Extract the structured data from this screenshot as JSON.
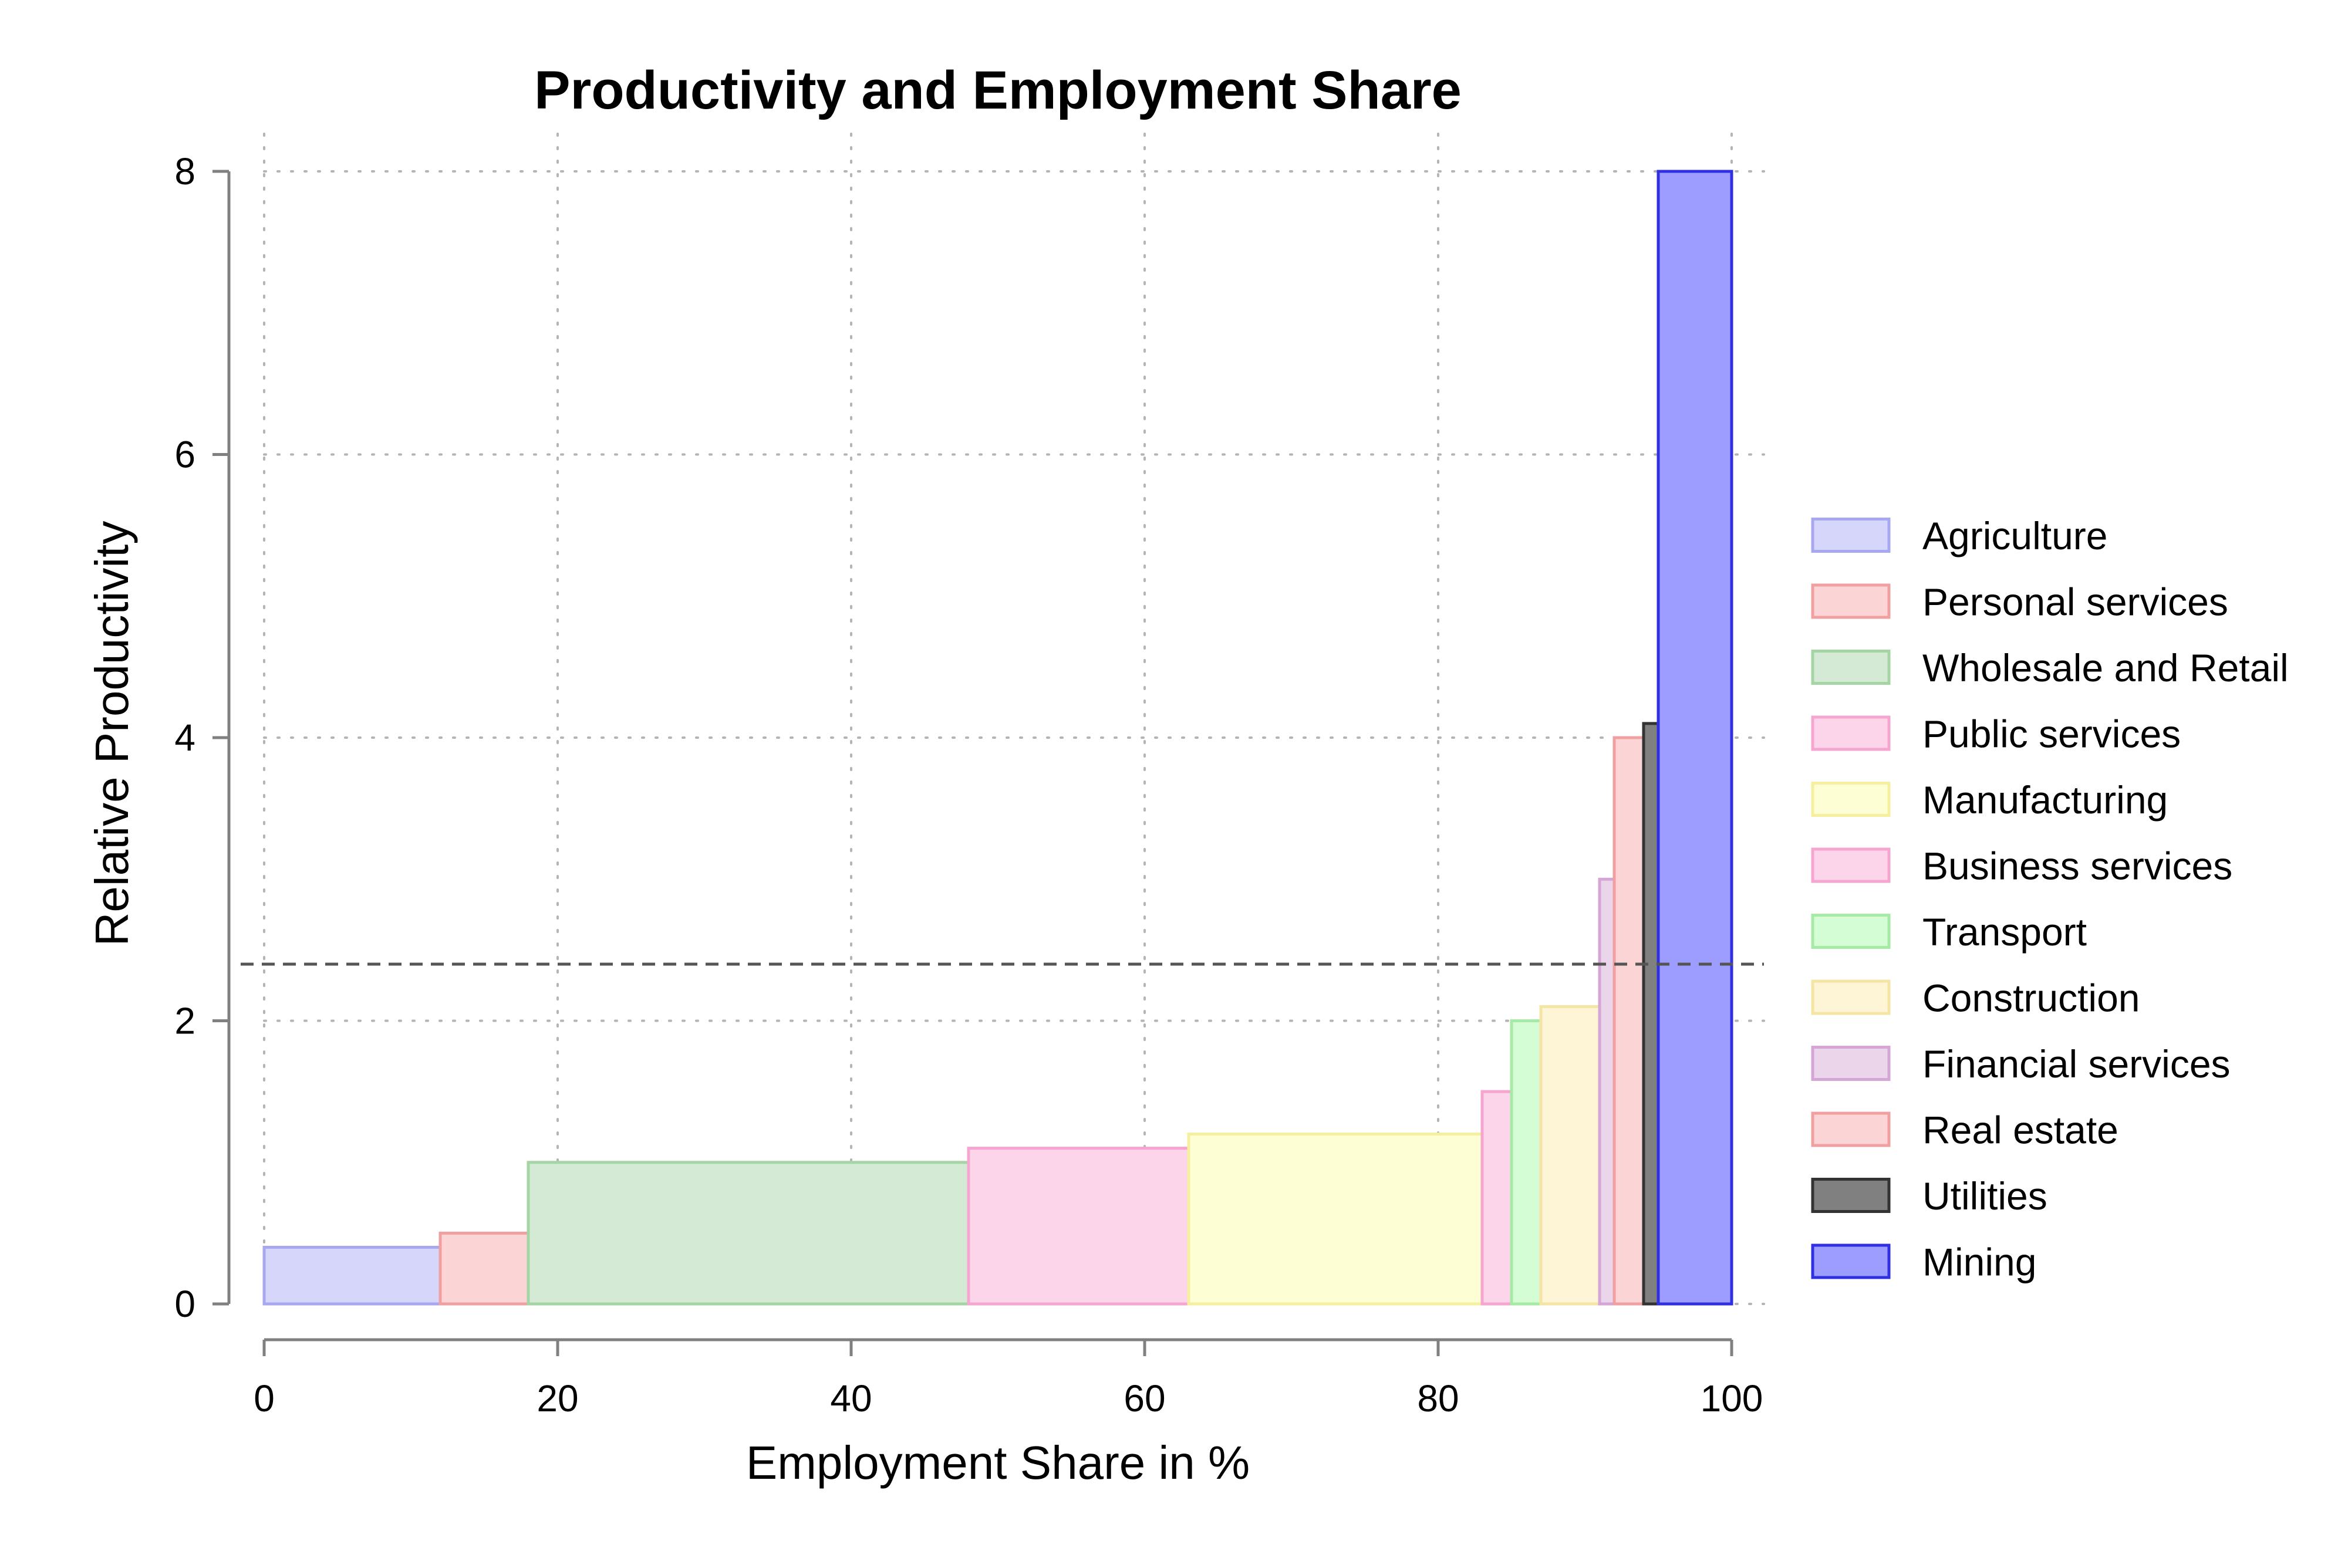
{
  "chart_data": {
    "type": "bar",
    "subtype": "variable-width (mekko) bar chart",
    "title": "Productivity and Employment Share",
    "xlabel": "Employment Share in %",
    "ylabel": "Relative Productivity",
    "xlim": [
      0,
      100
    ],
    "ylim": [
      0,
      8
    ],
    "xticks": [
      "0",
      "20",
      "40",
      "60",
      "80",
      "100"
    ],
    "yticks": [
      "0",
      "2",
      "4",
      "6",
      "8"
    ],
    "grid": true,
    "reference_line": {
      "y": 2.4,
      "style": "dashed"
    },
    "legend_position": "right",
    "series": [
      {
        "name": "Agriculture",
        "x_start": 0,
        "x_end": 12,
        "value": 0.4,
        "fill": "#d6d6fa",
        "stroke": "#a8a8f0"
      },
      {
        "name": "Personal services",
        "x_start": 12,
        "x_end": 18,
        "value": 0.5,
        "fill": "#fbd5d5",
        "stroke": "#f0a0a0"
      },
      {
        "name": "Wholesale and Retail",
        "x_start": 18,
        "x_end": 48,
        "value": 1.0,
        "fill": "#d5ead5",
        "stroke": "#a5d5a5"
      },
      {
        "name": "Public services",
        "x_start": 48,
        "x_end": 63,
        "value": 1.1,
        "fill": "#fdd5ea",
        "stroke": "#f5a5d0"
      },
      {
        "name": "Manufacturing",
        "x_start": 63,
        "x_end": 83,
        "value": 1.2,
        "fill": "#fefed5",
        "stroke": "#f5f0a0"
      },
      {
        "name": "Business services",
        "x_start": 83,
        "x_end": 85,
        "value": 1.5,
        "fill": "#fdd5ea",
        "stroke": "#f5a5d0"
      },
      {
        "name": "Transport",
        "x_start": 85,
        "x_end": 87,
        "value": 2.0,
        "fill": "#d5fdd5",
        "stroke": "#a5eaa5"
      },
      {
        "name": "Construction",
        "x_start": 87,
        "x_end": 91,
        "value": 2.1,
        "fill": "#fdf5d5",
        "stroke": "#f5e5a5"
      },
      {
        "name": "Financial services",
        "x_start": 91,
        "x_end": 92,
        "value": 3.0,
        "fill": "#ead5ea",
        "stroke": "#d5a5d5"
      },
      {
        "name": "Real estate",
        "x_start": 92,
        "x_end": 94,
        "value": 4.0,
        "fill": "#fbd5d5",
        "stroke": "#f0a0a0"
      },
      {
        "name": "Utilities",
        "x_start": 94,
        "x_end": 95,
        "value": 4.1,
        "fill": "#808080",
        "stroke": "#333333"
      },
      {
        "name": "Mining",
        "x_start": 95,
        "x_end": 100,
        "value": 8.0,
        "fill": "#9d9dff",
        "stroke": "#3030e0"
      }
    ]
  }
}
